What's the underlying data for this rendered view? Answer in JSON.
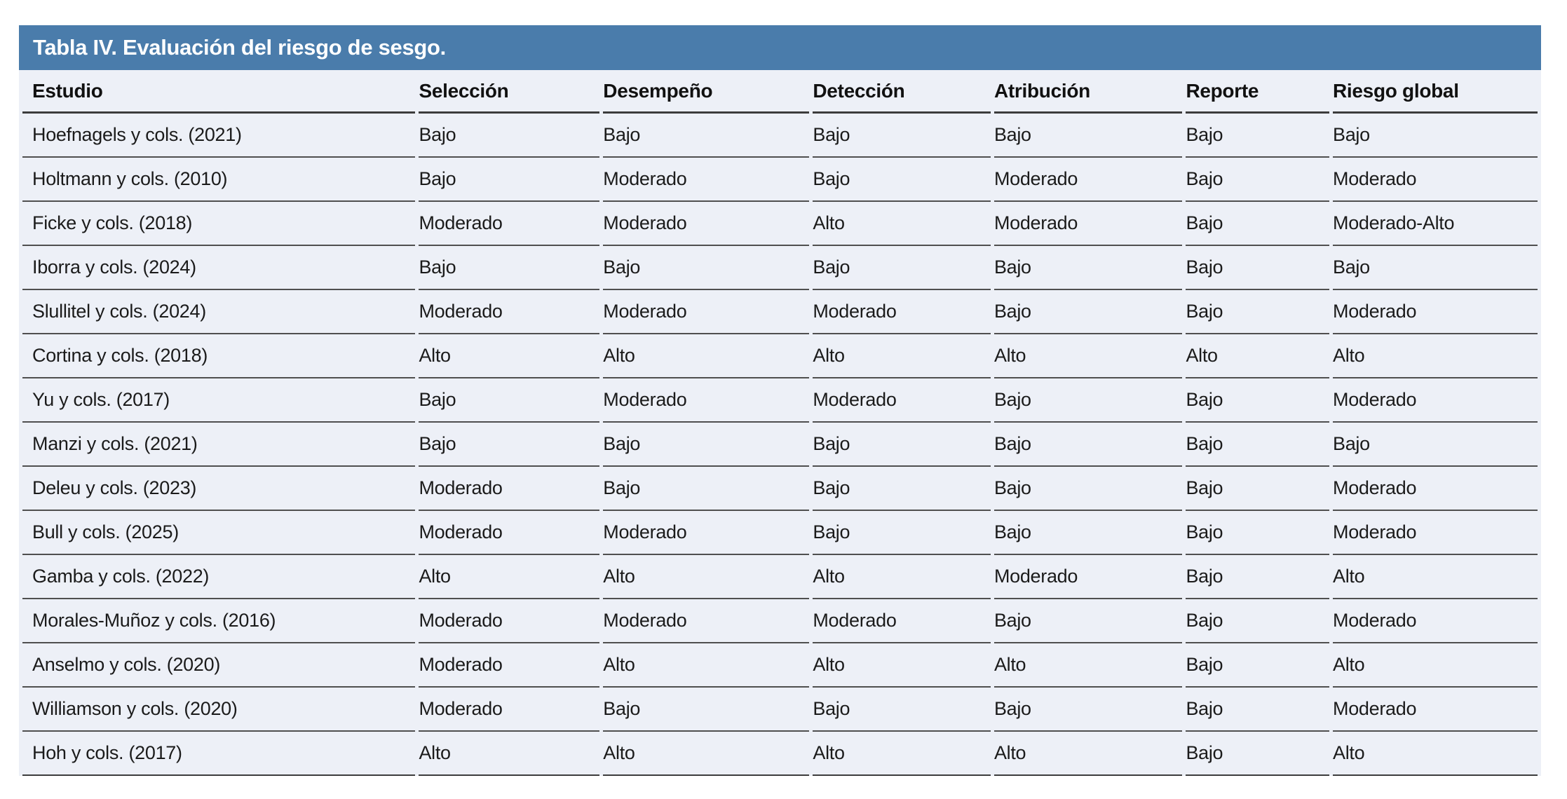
{
  "title": "Tabla IV. Evaluación del riesgo de sesgo.",
  "colors": {
    "title_bar_bg": "#4A7CAB",
    "title_text": "#FFFFFF",
    "body_bg": "#EDF0F7",
    "text": "#1B1B1B",
    "row_rule": "#4F4F4F",
    "header_rule": "#3C3C3C",
    "page_bg": "#FFFFFF"
  },
  "table": {
    "columns": [
      "Estudio",
      "Selección",
      "Desempeño",
      "Detección",
      "Atribución",
      "Reporte",
      "Riesgo global"
    ],
    "rows": [
      [
        "Hoefnagels y cols. (2021)",
        "Bajo",
        "Bajo",
        "Bajo",
        "Bajo",
        "Bajo",
        "Bajo"
      ],
      [
        "Holtmann y cols. (2010)",
        "Bajo",
        "Moderado",
        "Bajo",
        "Moderado",
        "Bajo",
        "Moderado"
      ],
      [
        "Ficke y cols. (2018)",
        "Moderado",
        "Moderado",
        "Alto",
        "Moderado",
        "Bajo",
        "Moderado-Alto"
      ],
      [
        "Iborra y cols. (2024)",
        "Bajo",
        "Bajo",
        "Bajo",
        "Bajo",
        "Bajo",
        "Bajo"
      ],
      [
        "Slullitel y cols. (2024)",
        "Moderado",
        "Moderado",
        "Moderado",
        "Bajo",
        "Bajo",
        "Moderado"
      ],
      [
        "Cortina y cols. (2018)",
        "Alto",
        "Alto",
        "Alto",
        "Alto",
        "Alto",
        "Alto"
      ],
      [
        "Yu y cols. (2017)",
        "Bajo",
        "Moderado",
        "Moderado",
        "Bajo",
        "Bajo",
        "Moderado"
      ],
      [
        "Manzi y cols. (2021)",
        "Bajo",
        "Bajo",
        "Bajo",
        "Bajo",
        "Bajo",
        "Bajo"
      ],
      [
        "Deleu y cols. (2023)",
        "Moderado",
        "Bajo",
        "Bajo",
        "Bajo",
        "Bajo",
        "Moderado"
      ],
      [
        "Bull y cols. (2025)",
        "Moderado",
        "Moderado",
        "Bajo",
        "Bajo",
        "Bajo",
        "Moderado"
      ],
      [
        "Gamba y cols. (2022)",
        "Alto",
        "Alto",
        "Alto",
        "Moderado",
        "Bajo",
        "Alto"
      ],
      [
        "Morales-Muñoz y cols. (2016)",
        "Moderado",
        "Moderado",
        "Moderado",
        "Bajo",
        "Bajo",
        "Moderado"
      ],
      [
        "Anselmo y cols. (2020)",
        "Moderado",
        "Alto",
        "Alto",
        "Alto",
        "Bajo",
        "Alto"
      ],
      [
        "Williamson y cols. (2020)",
        "Moderado",
        "Bajo",
        "Bajo",
        "Bajo",
        "Bajo",
        "Moderado"
      ],
      [
        "Hoh y cols. (2017)",
        "Alto",
        "Alto",
        "Alto",
        "Alto",
        "Bajo",
        "Alto"
      ]
    ]
  }
}
